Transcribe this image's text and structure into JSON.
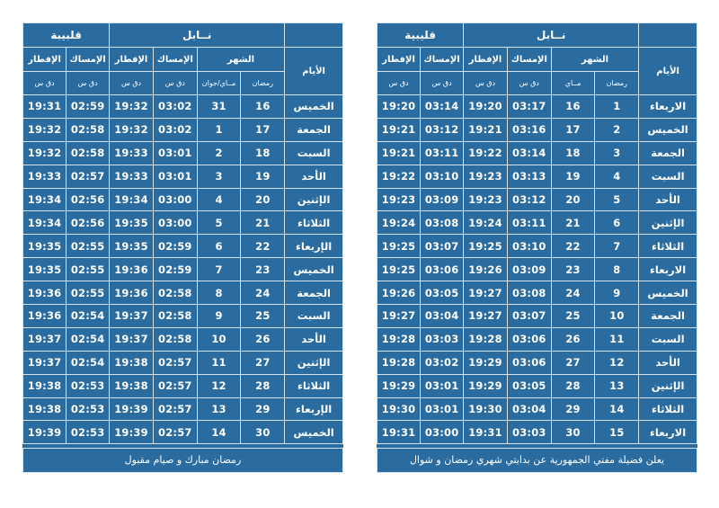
{
  "panels": [
    {
      "city1": "قلبيبة",
      "city2": "نــابل",
      "days_header": "الأيام",
      "month_header": "الشهر",
      "imsak_header": "الإمساك",
      "iftar_header": "الإفطار",
      "ramadan_sub": "رمضان",
      "greg_sub": "مــاي/جوان",
      "time_unit": "دق  س",
      "rows": [
        {
          "day": "الخميس",
          "ramadan": "16",
          "greg": "31",
          "n_imsak": "03:02",
          "n_iftar": "19:32",
          "q_imsak": "02:59",
          "q_iftar": "19:31"
        },
        {
          "day": "الجمعة",
          "ramadan": "17",
          "greg": "1",
          "n_imsak": "03:02",
          "n_iftar": "19:32",
          "q_imsak": "02:58",
          "q_iftar": "19:32"
        },
        {
          "day": "السبت",
          "ramadan": "18",
          "greg": "2",
          "n_imsak": "03:01",
          "n_iftar": "19:33",
          "q_imsak": "02:58",
          "q_iftar": "19:32"
        },
        {
          "day": "الأحد",
          "ramadan": "19",
          "greg": "3",
          "n_imsak": "03:01",
          "n_iftar": "19:33",
          "q_imsak": "02:57",
          "q_iftar": "19:33"
        },
        {
          "day": "الإثنين",
          "ramadan": "20",
          "greg": "4",
          "n_imsak": "03:00",
          "n_iftar": "19:34",
          "q_imsak": "02:56",
          "q_iftar": "19:34"
        },
        {
          "day": "الثلاثاء",
          "ramadan": "21",
          "greg": "5",
          "n_imsak": "03:00",
          "n_iftar": "19:35",
          "q_imsak": "02:56",
          "q_iftar": "19:34"
        },
        {
          "day": "الإربعاء",
          "ramadan": "22",
          "greg": "6",
          "n_imsak": "02:59",
          "n_iftar": "19:35",
          "q_imsak": "02:55",
          "q_iftar": "19:35"
        },
        {
          "day": "الخميس",
          "ramadan": "23",
          "greg": "7",
          "n_imsak": "02:59",
          "n_iftar": "19:36",
          "q_imsak": "02:55",
          "q_iftar": "19:35"
        },
        {
          "day": "الجمعة",
          "ramadan": "24",
          "greg": "8",
          "n_imsak": "02:58",
          "n_iftar": "19:36",
          "q_imsak": "02:55",
          "q_iftar": "19:36"
        },
        {
          "day": "السبت",
          "ramadan": "25",
          "greg": "9",
          "n_imsak": "02:58",
          "n_iftar": "19:37",
          "q_imsak": "02:54",
          "q_iftar": "19:36"
        },
        {
          "day": "الأحد",
          "ramadan": "26",
          "greg": "10",
          "n_imsak": "02:58",
          "n_iftar": "19:37",
          "q_imsak": "02:54",
          "q_iftar": "19:37"
        },
        {
          "day": "الإثنين",
          "ramadan": "27",
          "greg": "11",
          "n_imsak": "02:57",
          "n_iftar": "19:38",
          "q_imsak": "02:54",
          "q_iftar": "19:37"
        },
        {
          "day": "الثلاثاء",
          "ramadan": "28",
          "greg": "12",
          "n_imsak": "02:57",
          "n_iftar": "19:38",
          "q_imsak": "02:53",
          "q_iftar": "19:38"
        },
        {
          "day": "الإربعاء",
          "ramadan": "29",
          "greg": "13",
          "n_imsak": "02:57",
          "n_iftar": "19:39",
          "q_imsak": "02:53",
          "q_iftar": "19:38"
        },
        {
          "day": "الخميس",
          "ramadan": "30",
          "greg": "14",
          "n_imsak": "02:57",
          "n_iftar": "19:39",
          "q_imsak": "02:53",
          "q_iftar": "19:39"
        }
      ],
      "footer": "رمضان مبارك و صيام مقبول"
    },
    {
      "city1": "قليبية",
      "city2": "نــابل",
      "days_header": "الأيام",
      "month_header": "الشهر",
      "imsak_header": "الإمساك",
      "iftar_header": "الإفطار",
      "ramadan_sub": "رمضان",
      "greg_sub": "مــاي",
      "time_unit": "دق  س",
      "rows": [
        {
          "day": "الاربعاء",
          "ramadan": "1",
          "greg": "16",
          "n_imsak": "03:17",
          "n_iftar": "19:20",
          "q_imsak": "03:14",
          "q_iftar": "19:20"
        },
        {
          "day": "الخميس",
          "ramadan": "2",
          "greg": "17",
          "n_imsak": "03:16",
          "n_iftar": "19:21",
          "q_imsak": "03:12",
          "q_iftar": "19:21"
        },
        {
          "day": "الجمعة",
          "ramadan": "3",
          "greg": "18",
          "n_imsak": "03:14",
          "n_iftar": "19:22",
          "q_imsak": "03:11",
          "q_iftar": "19:21"
        },
        {
          "day": "السبت",
          "ramadan": "4",
          "greg": "19",
          "n_imsak": "03:13",
          "n_iftar": "19:23",
          "q_imsak": "03:10",
          "q_iftar": "19:22"
        },
        {
          "day": "الأحد",
          "ramadan": "5",
          "greg": "20",
          "n_imsak": "03:12",
          "n_iftar": "19:23",
          "q_imsak": "03:09",
          "q_iftar": "19:23"
        },
        {
          "day": "الإثنين",
          "ramadan": "6",
          "greg": "21",
          "n_imsak": "03:11",
          "n_iftar": "19:24",
          "q_imsak": "03:08",
          "q_iftar": "19:24"
        },
        {
          "day": "الثلاثاء",
          "ramadan": "7",
          "greg": "22",
          "n_imsak": "03:10",
          "n_iftar": "19:25",
          "q_imsak": "03:07",
          "q_iftar": "19:25"
        },
        {
          "day": "الاربعاء",
          "ramadan": "8",
          "greg": "23",
          "n_imsak": "03:09",
          "n_iftar": "19:26",
          "q_imsak": "03:06",
          "q_iftar": "19:25"
        },
        {
          "day": "الخميس",
          "ramadan": "9",
          "greg": "24",
          "n_imsak": "03:08",
          "n_iftar": "19:27",
          "q_imsak": "03:05",
          "q_iftar": "19:26"
        },
        {
          "day": "الجمعة",
          "ramadan": "10",
          "greg": "25",
          "n_imsak": "03:07",
          "n_iftar": "19:27",
          "q_imsak": "03:04",
          "q_iftar": "19:27"
        },
        {
          "day": "السبت",
          "ramadan": "11",
          "greg": "26",
          "n_imsak": "03:06",
          "n_iftar": "19:28",
          "q_imsak": "03:03",
          "q_iftar": "19:28"
        },
        {
          "day": "الأحد",
          "ramadan": "12",
          "greg": "27",
          "n_imsak": "03:06",
          "n_iftar": "19:29",
          "q_imsak": "03:02",
          "q_iftar": "19:28"
        },
        {
          "day": "الإثنين",
          "ramadan": "13",
          "greg": "28",
          "n_imsak": "03:05",
          "n_iftar": "19:29",
          "q_imsak": "03:01",
          "q_iftar": "19:29"
        },
        {
          "day": "الثلاثاء",
          "ramadan": "14",
          "greg": "29",
          "n_imsak": "03:04",
          "n_iftar": "19:30",
          "q_imsak": "03:01",
          "q_iftar": "19:30"
        },
        {
          "day": "الاربعاء",
          "ramadan": "15",
          "greg": "30",
          "n_imsak": "03:03",
          "n_iftar": "19:31",
          "q_imsak": "03:00",
          "q_iftar": "19:31"
        }
      ],
      "footer": "يعلن فضيلة مفتي الجمهورية عن بدايتي شهري رمضان و شوال"
    }
  ]
}
